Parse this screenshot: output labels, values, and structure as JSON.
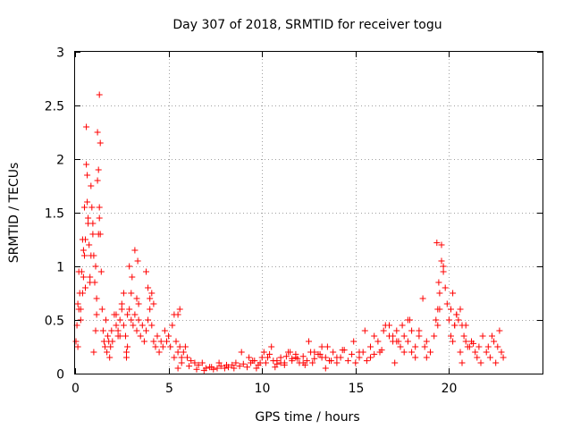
{
  "chart_data": {
    "type": "scatter",
    "title": "Day 307 of 2018, SRMTID for receiver togu",
    "xlabel": "GPS time / hours",
    "ylabel": "SRMTID / TECUs",
    "xlim": [
      0,
      25
    ],
    "ylim": [
      0,
      3
    ],
    "x_ticks": [
      0,
      5,
      10,
      15,
      20
    ],
    "x_tick_labels": [
      "0",
      "5",
      "10",
      "15",
      "20"
    ],
    "y_ticks": [
      0,
      0.5,
      1,
      1.5,
      2,
      2.5,
      3
    ],
    "y_tick_labels": [
      "0",
      "0.5",
      "1",
      "1.5",
      "2",
      "2.5",
      "3"
    ],
    "grid": true,
    "marker": "+",
    "colors": {
      "series": "#ff0000",
      "axis": "#000000",
      "grid": "#a0a0a0"
    },
    "series": [
      {
        "name": "SRMTID",
        "x": [
          0.05,
          0.1,
          0.15,
          0.2,
          0.25,
          0.3,
          0.35,
          0.4,
          0.45,
          0.5,
          0.55,
          0.6,
          0.65,
          0.7,
          0.75,
          0.8,
          0.85,
          0.9,
          0.95,
          1.0,
          1.05,
          1.1,
          1.15,
          1.2,
          1.25,
          1.3,
          1.35,
          1.4,
          1.45,
          1.5,
          1.55,
          1.6,
          1.65,
          1.7,
          1.75,
          1.8,
          1.85,
          1.9,
          1.95,
          2.0,
          2.1,
          2.2,
          2.3,
          2.4,
          2.5,
          2.6,
          2.7,
          2.8,
          2.9,
          3.0,
          3.1,
          3.2,
          3.3,
          3.4,
          3.5,
          3.6,
          3.7,
          3.8,
          3.9,
          4.0,
          4.1,
          4.2,
          4.3,
          4.4,
          4.5,
          4.6,
          4.7,
          4.8,
          4.9,
          5.0,
          5.1,
          5.2,
          5.3,
          5.4,
          5.5,
          5.6,
          5.7,
          5.8,
          5.9,
          6.0,
          6.2,
          6.4,
          6.6,
          6.8,
          7.0,
          7.2,
          7.4,
          7.6,
          7.8,
          8.0,
          8.2,
          8.4,
          8.6,
          8.8,
          9.0,
          9.2,
          9.4,
          9.6,
          9.8,
          10.0,
          10.2,
          10.4,
          10.6,
          10.8,
          11.0,
          11.2,
          11.4,
          11.6,
          11.8,
          12.0,
          12.2,
          12.4,
          12.6,
          12.8,
          13.0,
          13.2,
          13.4,
          13.6,
          13.8,
          14.0,
          14.2,
          14.4,
          14.6,
          14.8,
          15.0,
          15.2,
          15.4,
          15.6,
          15.8,
          16.0,
          16.2,
          16.4,
          16.6,
          16.8,
          17.0,
          17.2,
          17.4,
          17.6,
          17.8,
          18.0,
          18.2,
          18.4,
          18.6,
          18.8,
          19.0,
          19.2,
          19.3,
          19.4,
          19.5,
          19.6,
          19.7,
          19.8,
          19.9,
          20.0,
          20.1,
          20.2,
          20.3,
          20.4,
          20.5,
          20.6,
          20.7,
          20.8,
          20.9,
          21.0,
          21.2,
          21.4,
          21.6,
          21.8,
          22.0,
          22.2,
          22.4,
          22.6,
          22.8,
          2.75,
          2.8,
          2.75,
          1.3,
          1.35,
          1.3,
          0.6,
          0.65,
          0.7,
          1.2,
          1.25,
          0.5,
          0.55,
          0.45,
          0.4,
          0.3,
          0.2,
          0.15,
          1.1,
          1.15,
          1.0,
          0.95,
          0.85,
          0.8,
          3.3,
          3.35,
          3.4,
          3.2,
          2.9,
          3.0,
          3.05,
          3.8,
          3.9,
          4.0,
          4.1,
          4.2,
          2.2,
          2.3,
          2.4,
          2.5,
          2.6,
          18.7,
          18.8,
          19.4,
          19.45,
          19.5,
          19.35,
          19.6,
          19.7,
          20.1,
          20.2,
          20.3,
          20.4,
          16.5,
          16.8,
          17.0,
          17.2,
          17.5,
          17.8,
          16.0,
          16.3,
          15.8,
          15.5,
          15.2,
          14.9,
          13.5,
          13.2,
          12.8,
          12.5,
          12.2,
          11.8,
          11.5,
          11.2,
          10.8,
          10.5,
          10.3,
          10.1,
          9.9,
          9.7,
          9.5,
          9.3,
          8.9,
          8.5,
          8.1,
          7.7,
          7.3,
          6.9,
          6.5,
          6.1,
          5.7,
          5.5,
          5.3,
          5.6,
          5.5,
          21.5,
          21.7,
          22.1,
          22.3,
          22.5,
          22.7,
          22.9,
          21.3,
          21.1,
          20.9,
          20.7,
          20.6,
          18.4,
          18.2,
          18.0,
          17.9,
          17.6,
          17.3,
          17.1,
          14.3,
          14.0,
          13.7,
          13.4,
          13.1,
          12.7,
          12.3,
          11.9,
          11.6,
          11.3,
          11.0,
          10.7
        ],
        "y": [
          0.3,
          0.45,
          0.25,
          0.6,
          0.75,
          0.5,
          0.95,
          1.25,
          0.9,
          1.1,
          0.8,
          1.95,
          1.6,
          1.4,
          1.2,
          0.9,
          1.75,
          1.55,
          1.3,
          1.1,
          0.85,
          1.0,
          0.7,
          2.25,
          1.9,
          1.55,
          1.3,
          0.95,
          0.6,
          0.4,
          0.3,
          0.25,
          0.5,
          0.2,
          0.35,
          0.3,
          0.15,
          0.25,
          0.4,
          0.3,
          0.55,
          0.45,
          0.35,
          0.5,
          0.6,
          0.45,
          0.35,
          0.55,
          0.6,
          0.5,
          0.45,
          0.55,
          0.4,
          0.5,
          0.35,
          0.45,
          0.3,
          0.4,
          0.5,
          0.6,
          0.45,
          0.3,
          0.25,
          0.35,
          0.2,
          0.3,
          0.25,
          0.4,
          0.3,
          0.35,
          0.25,
          0.45,
          0.55,
          0.3,
          0.2,
          0.25,
          0.15,
          0.2,
          0.25,
          0.15,
          0.12,
          0.1,
          0.08,
          0.1,
          0.05,
          0.06,
          0.04,
          0.05,
          0.07,
          0.05,
          0.06,
          0.08,
          0.1,
          0.07,
          0.09,
          0.06,
          0.1,
          0.12,
          0.08,
          0.15,
          0.1,
          0.18,
          0.12,
          0.09,
          0.15,
          0.1,
          0.2,
          0.14,
          0.18,
          0.1,
          0.16,
          0.12,
          0.2,
          0.14,
          0.18,
          0.25,
          0.15,
          0.12,
          0.2,
          0.1,
          0.15,
          0.22,
          0.12,
          0.18,
          0.1,
          0.15,
          0.2,
          0.12,
          0.25,
          0.18,
          0.3,
          0.22,
          0.45,
          0.35,
          0.3,
          0.4,
          0.25,
          0.35,
          0.3,
          0.2,
          0.25,
          0.4,
          0.7,
          0.3,
          0.2,
          0.35,
          0.5,
          0.45,
          0.6,
          1.2,
          1.0,
          0.8,
          0.65,
          0.5,
          0.35,
          0.3,
          0.45,
          0.55,
          0.5,
          0.6,
          0.45,
          0.35,
          0.3,
          0.25,
          0.3,
          0.2,
          0.25,
          0.35,
          0.2,
          0.15,
          0.3,
          0.25,
          0.2,
          0.15,
          0.25,
          0.2,
          2.6,
          2.15,
          1.45,
          2.3,
          1.85,
          1.45,
          1.8,
          1.3,
          1.55,
          1.25,
          1.15,
          0.75,
          0.6,
          0.95,
          0.65,
          0.4,
          0.55,
          0.2,
          1.4,
          1.1,
          0.85,
          0.7,
          1.05,
          0.65,
          1.15,
          1.0,
          0.75,
          0.9,
          0.95,
          0.8,
          0.7,
          0.75,
          0.65,
          0.55,
          0.4,
          0.35,
          0.65,
          0.75,
          0.25,
          0.15,
          0.6,
          0.85,
          0.75,
          1.22,
          1.05,
          0.95,
          0.6,
          0.75,
          0.45,
          0.55,
          0.4,
          0.45,
          0.35,
          0.3,
          0.45,
          0.5,
          0.35,
          0.2,
          0.15,
          0.4,
          0.2,
          0.3,
          0.25,
          0.15,
          0.2,
          0.3,
          0.1,
          0.15,
          0.2,
          0.08,
          0.12,
          0.25,
          0.15,
          0.2,
          0.1,
          0.05,
          0.12,
          0.15,
          0.2,
          0.05,
          0.08,
          0.1,
          0.06,
          0.03,
          0.04,
          0.07,
          0.1,
          0.05,
          0.15,
          0.6,
          0.55,
          0.15,
          0.1,
          0.25,
          0.35,
          0.1,
          0.4,
          0.15,
          0.28,
          0.25,
          0.45,
          0.1,
          0.2,
          0.35,
          0.15,
          0.4,
          0.5,
          0.2,
          0.3,
          0.1,
          0.22,
          0.15,
          0.12,
          0.05,
          0.18,
          0.1,
          0.08,
          0.14,
          0.12,
          0.16,
          0.1,
          0.06
        ]
      }
    ]
  }
}
